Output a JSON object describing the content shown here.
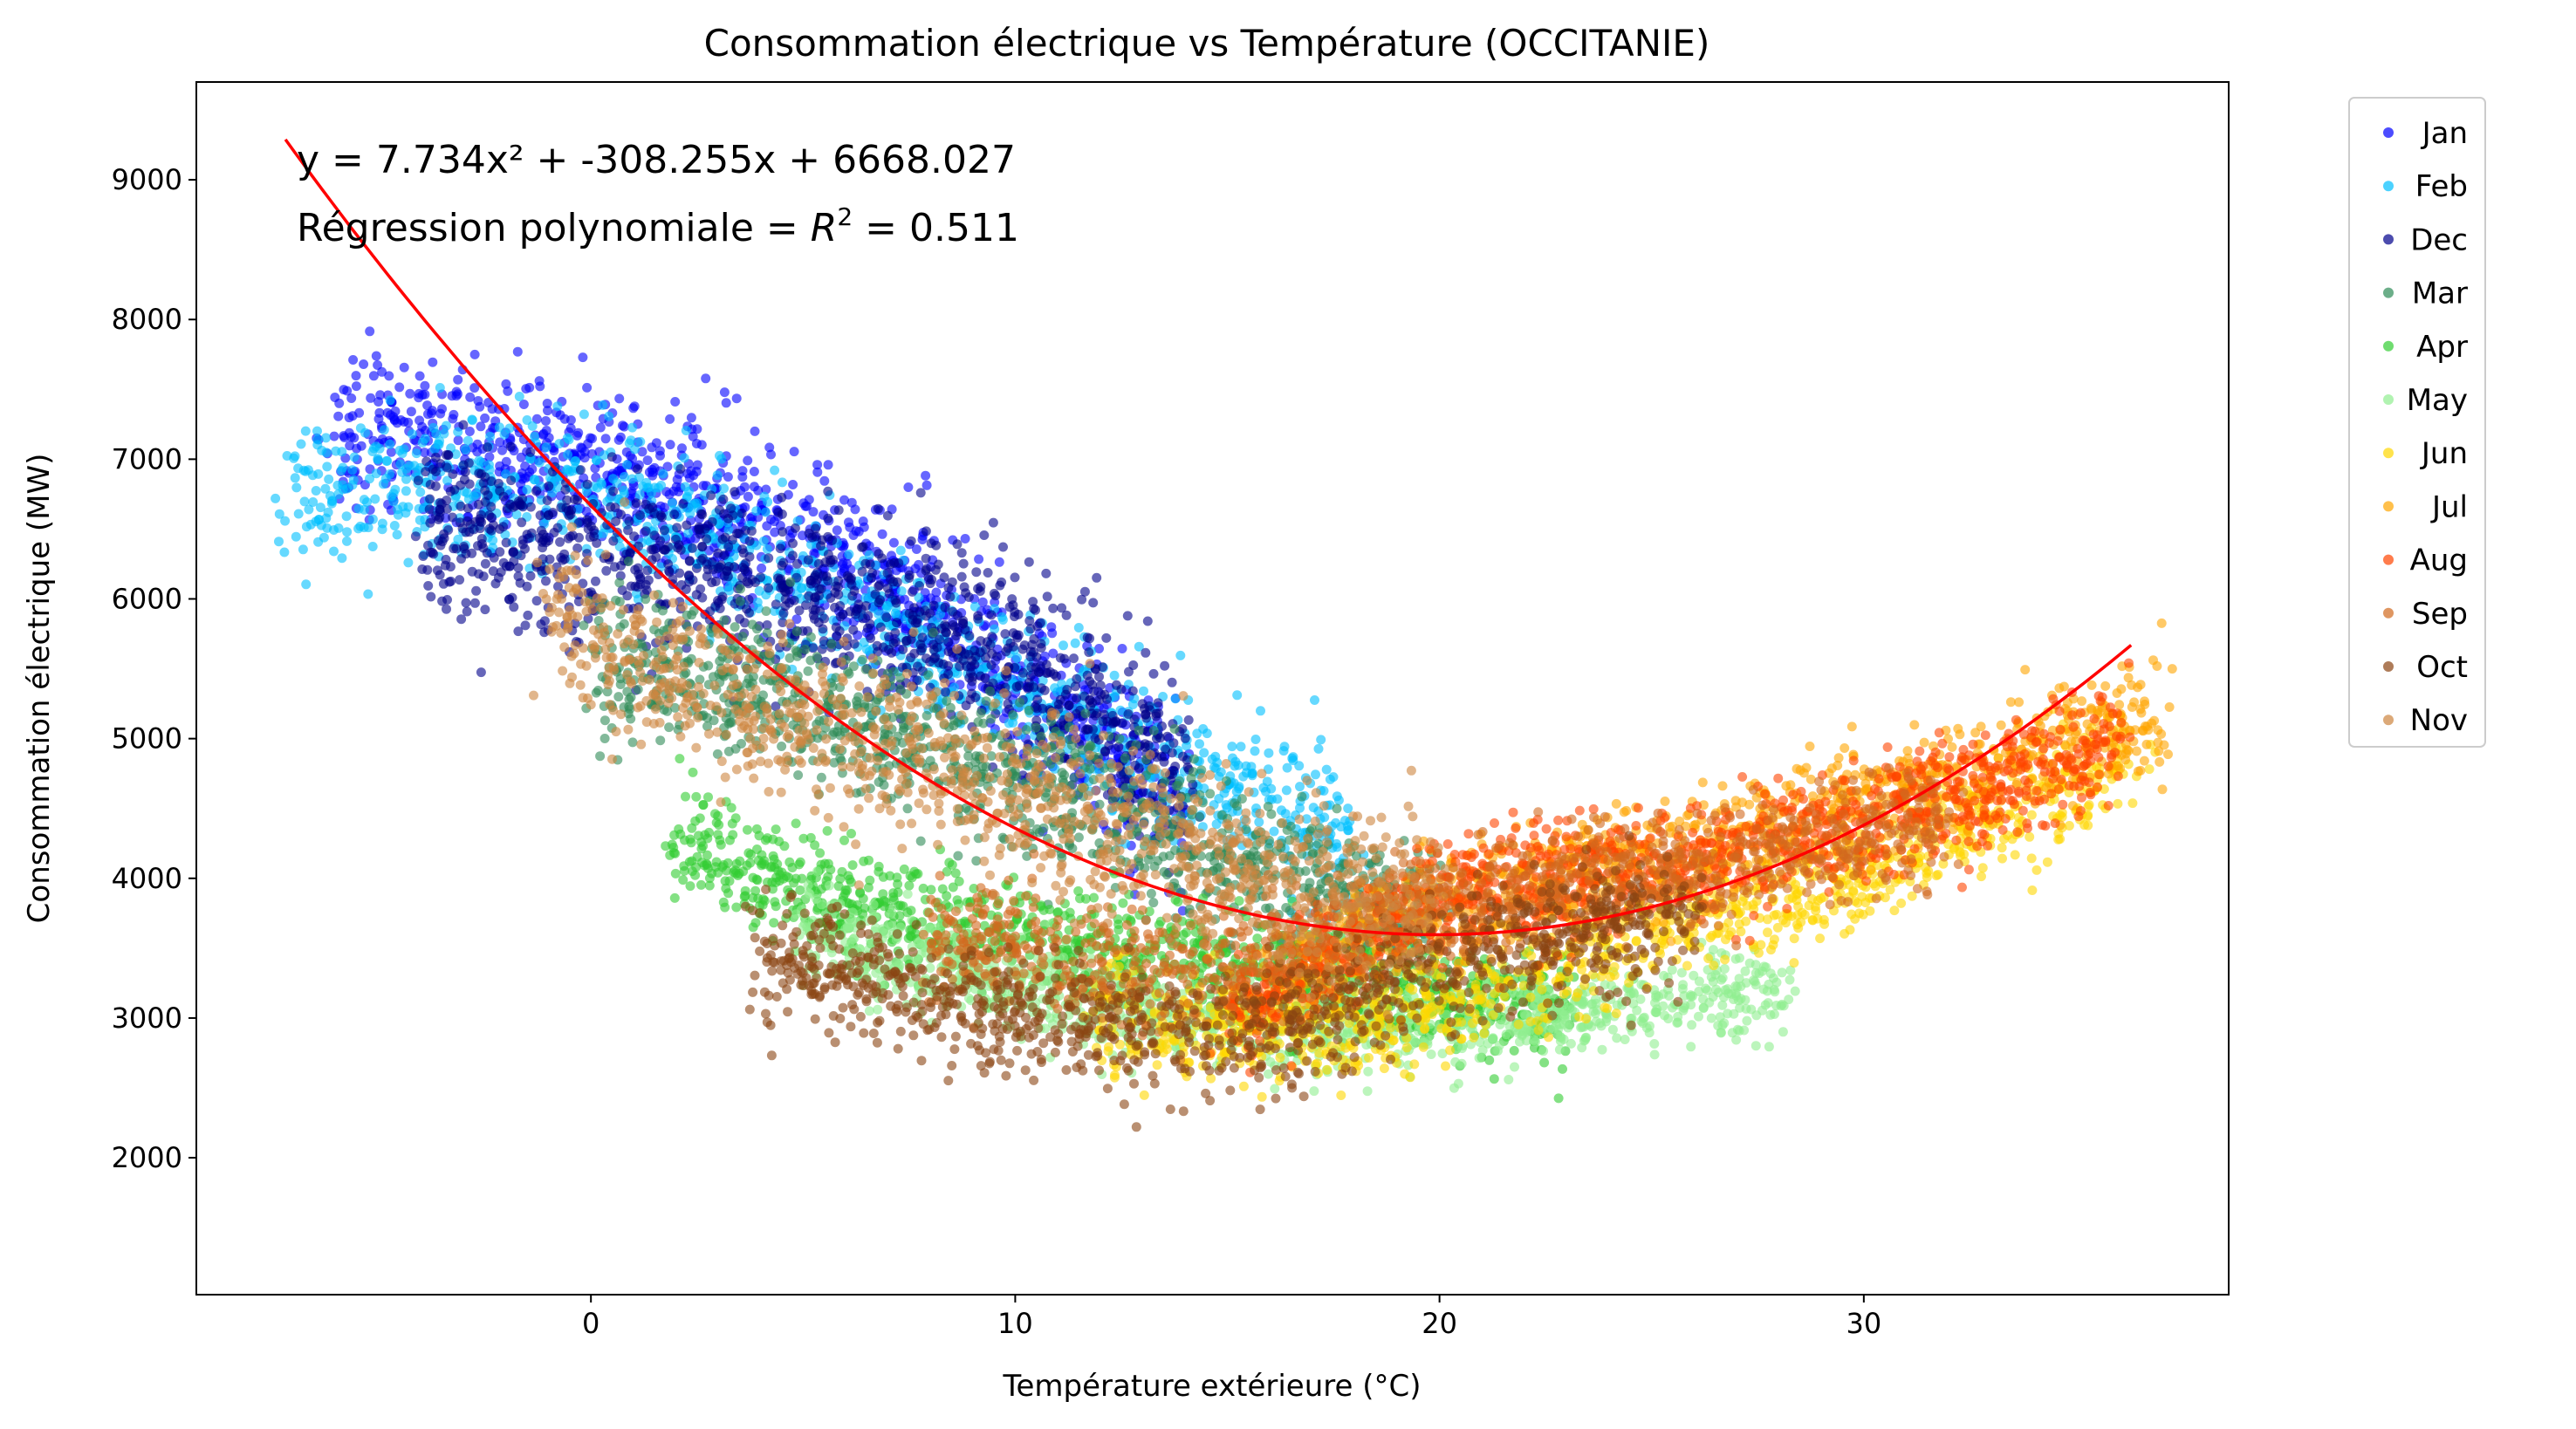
{
  "chart_data": {
    "type": "scatter",
    "title": "Consommation électrique vs Température (OCCITANIE)",
    "xlabel": "Température extérieure (°C)",
    "ylabel": "Consommation électrique (MW)",
    "xlim": [
      -9.3,
      38.6
    ],
    "ylim": [
      1020,
      9700
    ],
    "xticks": [
      0,
      10,
      20,
      30
    ],
    "yticks": [
      2000,
      3000,
      4000,
      5000,
      6000,
      7000,
      8000,
      9000
    ],
    "grid": false,
    "legend_position": "outside-right-top",
    "annotations": {
      "equation": "y = 7.734x² + -308.255x + 6668.027",
      "r2_prefix": "Régression polynomiale = ",
      "r2_symbol": "R",
      "r2_exponent": "2",
      "r2_value": " = 0.511"
    },
    "fit": {
      "name": "polynomial regression",
      "color": "#ff0000",
      "coefficients": [
        7.734,
        -308.255,
        6668.027
      ],
      "x_range": [
        -7.2,
        36.3
      ]
    },
    "series": [
      {
        "name": "Jan",
        "color": "#0000ff",
        "temp_range": [
          -6.0,
          14.0
        ],
        "center": [
          [
            -4,
            7200
          ],
          [
            0,
            6900
          ],
          [
            5,
            6500
          ],
          [
            10,
            5400
          ],
          [
            14,
            4500
          ]
        ],
        "spread": 550
      },
      {
        "name": "Feb",
        "color": "#00bfff",
        "temp_range": [
          -7.0,
          18.0
        ],
        "center": [
          [
            -6,
            6800
          ],
          [
            0,
            6800
          ],
          [
            6,
            6000
          ],
          [
            12,
            5000
          ],
          [
            18,
            4300
          ]
        ],
        "spread": 500
      },
      {
        "name": "Dec",
        "color": "#00008b",
        "temp_range": [
          -4.0,
          14.0
        ],
        "center": [
          [
            -4,
            6600
          ],
          [
            0,
            6300
          ],
          [
            6,
            6000
          ],
          [
            10,
            5600
          ],
          [
            14,
            4800
          ]
        ],
        "spread": 550
      },
      {
        "name": "Mar",
        "color": "#2e8b57",
        "temp_range": [
          0.0,
          20.0
        ],
        "center": [
          [
            0,
            5600
          ],
          [
            5,
            5300
          ],
          [
            10,
            4700
          ],
          [
            15,
            4100
          ],
          [
            20,
            3600
          ]
        ],
        "spread": 500
      },
      {
        "name": "Apr",
        "color": "#32cd32",
        "temp_range": [
          2.0,
          23.0
        ],
        "center": [
          [
            2,
            4300
          ],
          [
            6,
            3800
          ],
          [
            12,
            3500
          ],
          [
            18,
            3200
          ],
          [
            23,
            3100
          ]
        ],
        "spread": 350
      },
      {
        "name": "May",
        "color": "#90ee90",
        "temp_range": [
          5.0,
          28.0
        ],
        "center": [
          [
            5,
            3600
          ],
          [
            10,
            3200
          ],
          [
            16,
            2900
          ],
          [
            22,
            3000
          ],
          [
            28,
            3200
          ]
        ],
        "spread": 300
      },
      {
        "name": "Jun",
        "color": "#ffd700",
        "temp_range": [
          12.0,
          36.5
        ],
        "center": [
          [
            12,
            3000
          ],
          [
            18,
            2900
          ],
          [
            24,
            3500
          ],
          [
            30,
            4000
          ],
          [
            36,
            4800
          ]
        ],
        "spread": 350
      },
      {
        "name": "Jul",
        "color": "#ffa500",
        "temp_range": [
          16.0,
          37.0
        ],
        "center": [
          [
            16,
            3300
          ],
          [
            20,
            3800
          ],
          [
            26,
            4200
          ],
          [
            32,
            4700
          ],
          [
            36,
            5100
          ]
        ],
        "spread": 350
      },
      {
        "name": "Aug",
        "color": "#ff4500",
        "temp_range": [
          15.0,
          36.0
        ],
        "center": [
          [
            15,
            3000
          ],
          [
            20,
            3900
          ],
          [
            26,
            4100
          ],
          [
            32,
            4500
          ],
          [
            36,
            5000
          ]
        ],
        "spread": 380
      },
      {
        "name": "Sep",
        "color": "#d2691e",
        "temp_range": [
          8.0,
          32.0
        ],
        "center": [
          [
            8,
            3600
          ],
          [
            14,
            3300
          ],
          [
            20,
            3800
          ],
          [
            26,
            4100
          ],
          [
            32,
            4400
          ]
        ],
        "spread": 380
      },
      {
        "name": "Oct",
        "color": "#8b4513",
        "temp_range": [
          4.0,
          26.0
        ],
        "center": [
          [
            4,
            3500
          ],
          [
            10,
            3000
          ],
          [
            16,
            2900
          ],
          [
            21,
            3500
          ],
          [
            26,
            3700
          ]
        ],
        "spread": 420
      },
      {
        "name": "Nov",
        "color": "#cd853f",
        "temp_range": [
          -1.0,
          20.0
        ],
        "center": [
          [
            -1,
            5900
          ],
          [
            4,
            5200
          ],
          [
            10,
            4600
          ],
          [
            15,
            4100
          ],
          [
            20,
            3800
          ]
        ],
        "spread": 550
      }
    ]
  }
}
